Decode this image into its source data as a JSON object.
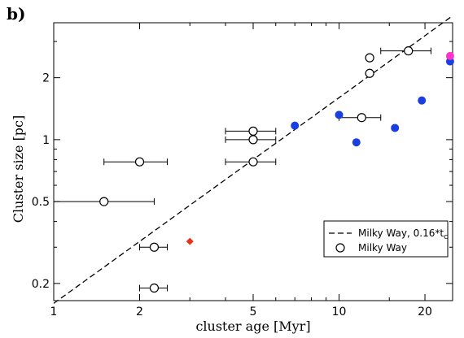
{
  "chart_data": {
    "type": "scatter",
    "panel_label": "b)",
    "xlabel": "cluster age [Myr]",
    "ylabel": "Cluster size [pc]",
    "x_scale": "log",
    "y_scale": "log",
    "xlim": [
      1,
      25
    ],
    "ylim": [
      0.165,
      3.7
    ],
    "x_ticks": [
      {
        "value": 1,
        "label": "1"
      },
      {
        "value": 2,
        "label": "2"
      },
      {
        "value": 5,
        "label": "5"
      },
      {
        "value": 10,
        "label": "10"
      },
      {
        "value": 20,
        "label": "20"
      }
    ],
    "y_ticks": [
      {
        "value": 0.2,
        "label": "0.2"
      },
      {
        "value": 0.5,
        "label": "0.5"
      },
      {
        "value": 1,
        "label": "1"
      },
      {
        "value": 2,
        "label": "2"
      }
    ],
    "x_minor_ticks": [
      3,
      4,
      6,
      7,
      8,
      9,
      15
    ],
    "y_minor_ticks": [
      0.3,
      0.4,
      0.6,
      0.7,
      0.8,
      0.9,
      3
    ],
    "grid": false,
    "legend_position": "bottom-right",
    "legend": [
      {
        "label": "Milky Way, 0.16*t",
        "subscript": "c",
        "style": "dashed-line"
      },
      {
        "label": "Milky Way",
        "style": "open-circle"
      }
    ],
    "series": [
      {
        "name": "Milky Way, 0.16*t",
        "style": "dashed-line",
        "color": "#000000",
        "slope": 0.16,
        "x": [
          1,
          25
        ]
      },
      {
        "name": "Milky Way",
        "style": "open-circle",
        "color": "#000000",
        "points": [
          {
            "x": 1.5,
            "y": 0.5,
            "xerr": [
              1.0,
              2.25
            ]
          },
          {
            "x": 2.0,
            "y": 0.78,
            "xerr": [
              1.5,
              2.5
            ]
          },
          {
            "x": 2.25,
            "y": 0.3,
            "xerr": [
              2.0,
              2.5
            ]
          },
          {
            "x": 2.25,
            "y": 0.19,
            "xerr": [
              2.0,
              2.5
            ]
          },
          {
            "x": 5.0,
            "y": 1.1,
            "xerr": [
              4.0,
              6.0
            ]
          },
          {
            "x": 5.0,
            "y": 1.0,
            "xerr": [
              4.0,
              6.0
            ]
          },
          {
            "x": 5.0,
            "y": 0.78,
            "xerr": [
              4.0,
              6.0
            ]
          },
          {
            "x": 12.0,
            "y": 1.28,
            "xerr": [
              10.0,
              14.0
            ]
          },
          {
            "x": 12.8,
            "y": 2.1
          },
          {
            "x": 12.8,
            "y": 2.5
          },
          {
            "x": 17.5,
            "y": 2.7,
            "xerr": [
              14.0,
              21.0
            ]
          }
        ]
      },
      {
        "style": "filled-circle",
        "color": "#1a3fe0",
        "points": [
          {
            "x": 7.0,
            "y": 1.17
          },
          {
            "x": 10.0,
            "y": 1.32
          },
          {
            "x": 11.5,
            "y": 0.97
          },
          {
            "x": 15.7,
            "y": 1.14
          },
          {
            "x": 19.5,
            "y": 1.55
          },
          {
            "x": 24.5,
            "y": 2.4
          }
        ]
      },
      {
        "style": "filled-circle",
        "color": "#ff33cc",
        "points": [
          {
            "x": 24.5,
            "y": 2.55
          }
        ]
      },
      {
        "style": "filled-diamond",
        "color": "#e8331c",
        "points": [
          {
            "x": 3.0,
            "y": 0.32
          }
        ]
      }
    ]
  }
}
